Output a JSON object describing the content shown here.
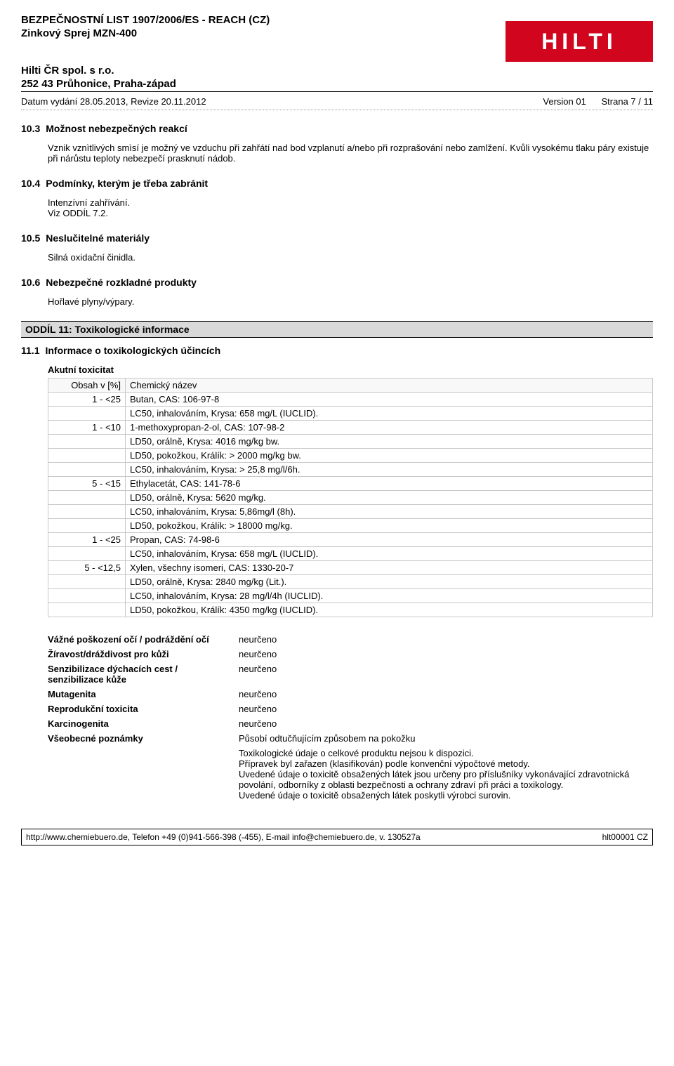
{
  "header": {
    "docTitle": "BEZPEČNOSTNÍ LIST 1907/2006/ES - REACH (CZ)",
    "productName": "Zinkový Sprej MZN-400",
    "company": "Hilti ČR spol. s r.o.",
    "address": "252 43 Průhonice, Praha-západ",
    "issueLine": "Datum vydání 28.05.2013, Revize 20.11.2012",
    "version": "Version 01",
    "page": "Strana 7 / 11",
    "logoText": "HILTI"
  },
  "colors": {
    "logoBg": "#d2051e",
    "logoFg": "#ffffff",
    "barBg": "#d9d9d9",
    "text": "#000000",
    "tableBorder": "#c8c8c8"
  },
  "sections": {
    "s103": {
      "num": "10.3",
      "title": "Možnost nebezpečných reakcí",
      "body": "Vznik vznìtlivých smìsí je možný ve vzduchu při zahřátí nad bod vzplanutí a/nebo při rozprašování nebo zamlžení. Kvůli vysokému tlaku páry existuje při nárůstu teploty nebezpečí prasknutí nádob."
    },
    "s104": {
      "num": "10.4",
      "title": "Podmínky, kterým je třeba zabránit",
      "lines": [
        "Intenzívní zahřívání.",
        "Viz ODDÍL 7.2."
      ]
    },
    "s105": {
      "num": "10.5",
      "title": "Neslučitelné materiály",
      "body": "Silná oxidační činidla."
    },
    "s106": {
      "num": "10.6",
      "title": "Nebezpečné rozkladné produkty",
      "body": "Hořlavé plyny/výpary."
    }
  },
  "oddil11": {
    "bar": "ODDÍL 11: Toxikologické informace",
    "s111": {
      "num": "11.1",
      "title": "Informace o toxikologických účincích"
    },
    "akutni": "Akutní toxicitat"
  },
  "toxTable": {
    "headers": {
      "col1": "Obsah v [%]",
      "col2": "Chemický název"
    },
    "rows": [
      {
        "c1": "1 - <25",
        "c2": "Butan, CAS: 106-97-8"
      },
      {
        "c1": "",
        "c2": "LC50, inhalováním, Krysa: 658 mg/L (IUCLID)."
      },
      {
        "c1": "1 - <10",
        "c2": "1-methoxypropan-2-ol, CAS: 107-98-2"
      },
      {
        "c1": "",
        "c2": "LD50, orálně, Krysa: 4016 mg/kg bw."
      },
      {
        "c1": "",
        "c2": "LD50, pokožkou, Králík: > 2000 mg/kg bw."
      },
      {
        "c1": "",
        "c2": "LC50, inhalováním, Krysa: > 25,8 mg/l/6h."
      },
      {
        "c1": "5 - <15",
        "c2": "Ethylacetát, CAS: 141-78-6"
      },
      {
        "c1": "",
        "c2": "LD50, orálně, Krysa: 5620 mg/kg."
      },
      {
        "c1": "",
        "c2": "LC50, inhalováním, Krysa: 5,86mg/l (8h)."
      },
      {
        "c1": "",
        "c2": "LD50, pokožkou, Králík: > 18000 mg/kg."
      },
      {
        "c1": "1 - <25",
        "c2": "Propan, CAS: 74-98-6"
      },
      {
        "c1": "",
        "c2": "LC50, inhalováním, Krysa: 658 mg/L (IUCLID)."
      },
      {
        "c1": "5 - <12,5",
        "c2": "Xylen, všechny isomeri, CAS: 1330-20-7"
      },
      {
        "c1": "",
        "c2": "LD50, orálně, Krysa: 2840 mg/kg (Lit.)."
      },
      {
        "c1": "",
        "c2": "LC50, inhalováním, Krysa: 28 mg/l/4h (IUCLID)."
      },
      {
        "c1": "",
        "c2": "LD50, pokožkou, Králík: 4350 mg/kg (IUCLID)."
      }
    ]
  },
  "infoGrid": {
    "rows": [
      {
        "label": "Vážné poškození očí / podráždění očí",
        "val": "neurčeno"
      },
      {
        "label": "Žíravost/dráždivost pro kůži",
        "val": "neurčeno"
      },
      {
        "label": "Senzibilizace dýchacích cest / senzibilizace kůže",
        "val": "neurčeno"
      },
      {
        "label": "Mutagenita",
        "val": "neurčeno"
      },
      {
        "label": "Reprodukční toxicita",
        "val": "neurčeno"
      },
      {
        "label": "Karcinogenita",
        "val": "neurčeno"
      },
      {
        "label": "Všeobecné poznámky",
        "val": "Působí odtučňujícím způsobem na pokožku"
      }
    ],
    "notes": [
      "Toxikologické údaje o celkové produktu nejsou k dispozici.",
      "Přípravek byl zařazen (klasifikován) podle konvenční výpočtové metody.",
      "Uvedené údaje o toxicitě obsažených látek jsou určeny pro příslušníky vykonávající zdravotnická povolání, odborníky z oblasti bezpečnosti a ochrany zdraví při práci a toxikology.",
      "Uvedené údaje o toxicitě obsažených látek poskytli výrobci surovin."
    ]
  },
  "footer": {
    "left": "http://www.chemiebuero.de, Telefon +49 (0)941-566-398 (-455), E-mail info@chemiebuero.de,  v. 130527a",
    "right": "hlt00001 CZ"
  }
}
